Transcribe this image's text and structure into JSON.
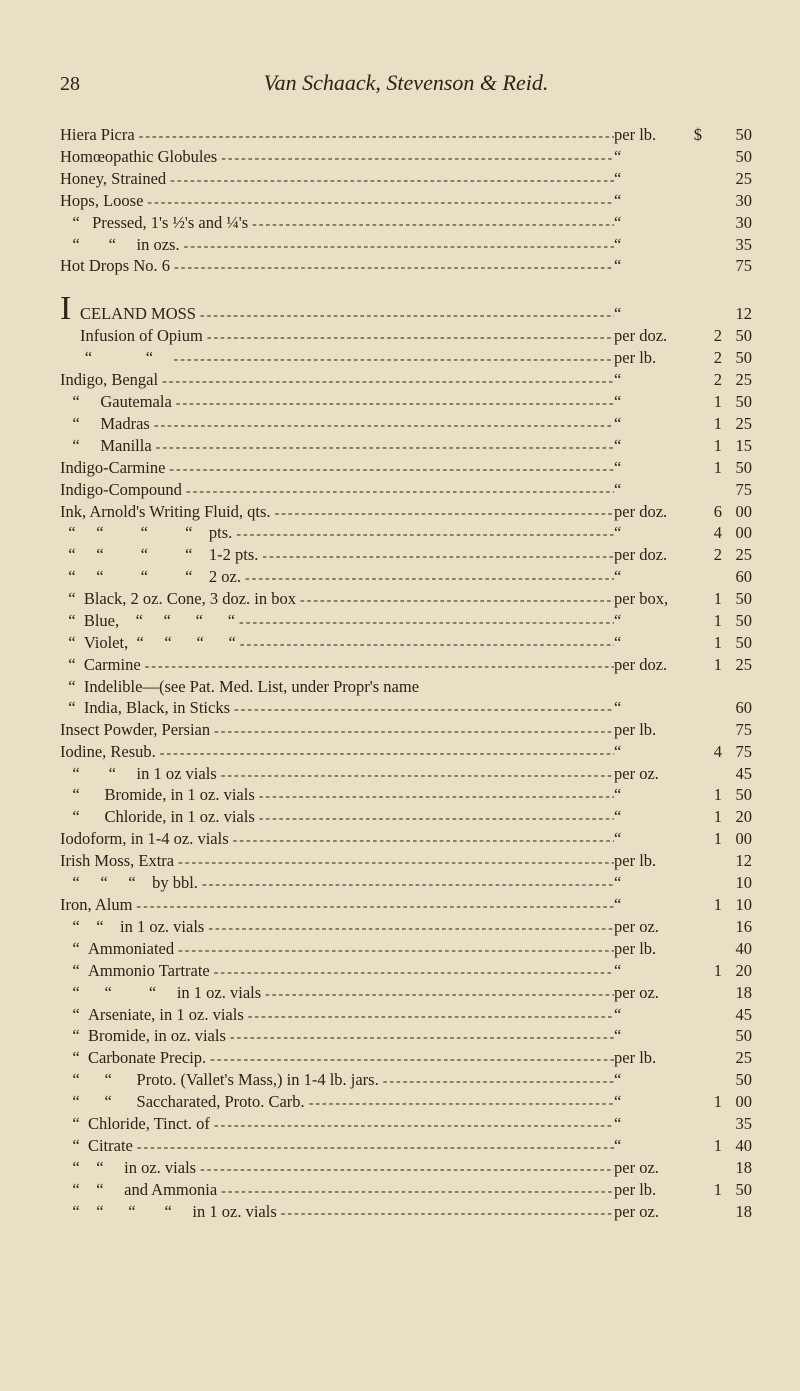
{
  "page_number": "28",
  "running_title": "Van Schaack, Stevenson & Reid.",
  "currency_symbol": "$",
  "entries": [
    {
      "desc": "Hiera Picra",
      "unit": "per lb.",
      "dol": "$",
      "whole": "",
      "cents": "50"
    },
    {
      "desc": "Homœopathic Globules",
      "unit": "“",
      "whole": "",
      "cents": "50"
    },
    {
      "desc": "Honey, Strained",
      "unit": "“",
      "whole": "",
      "cents": "25"
    },
    {
      "desc": "Hops, Loose",
      "unit": "“",
      "whole": "",
      "cents": "30"
    },
    {
      "desc": "   “   Pressed, 1's ½'s and ¼'s",
      "unit": "“",
      "whole": "",
      "cents": "30"
    },
    {
      "desc": "   “       “     in ozs.",
      "unit": "“",
      "whole": "",
      "cents": "35"
    },
    {
      "desc": "Hot Drops No. 6",
      "unit": "“",
      "whole": "",
      "cents": "75"
    },
    {
      "gap": true
    },
    {
      "drop": "I",
      "desc": "CELAND MOSS",
      "unit": "“",
      "whole": "",
      "cents": "12"
    },
    {
      "dropcont": true,
      "desc": "Infusion of Opium",
      "unit": "per doz.",
      "whole": "2",
      "cents": "50"
    },
    {
      "desc": "      “             “    ",
      "unit": "per lb.",
      "whole": "2",
      "cents": "50"
    },
    {
      "desc": "Indigo, Bengal",
      "unit": "“",
      "whole": "2",
      "cents": "25"
    },
    {
      "desc": "   “     Gautemala",
      "unit": "“",
      "whole": "1",
      "cents": "50"
    },
    {
      "desc": "   “     Madras",
      "unit": "“",
      "whole": "1",
      "cents": "25"
    },
    {
      "desc": "   “     Manilla",
      "unit": "“",
      "whole": "1",
      "cents": "15"
    },
    {
      "desc": "Indigo-Carmine",
      "unit": "“",
      "whole": "1",
      "cents": "50"
    },
    {
      "desc": "Indigo-Compound",
      "unit": "“",
      "whole": "",
      "cents": "75"
    },
    {
      "desc": "Ink, Arnold's Writing Fluid, qts.",
      "unit": "per doz.",
      "whole": "6",
      "cents": "00"
    },
    {
      "desc": "  “     “         “         “    pts.",
      "unit": "“",
      "whole": "4",
      "cents": "00"
    },
    {
      "desc": "  “     “         “         “    1-2 pts.",
      "unit": "per doz.",
      "whole": "2",
      "cents": "25"
    },
    {
      "desc": "  “     “         “         “    2 oz.",
      "unit": "“",
      "whole": "",
      "cents": "60"
    },
    {
      "desc": "  “  Black, 2 oz. Cone, 3 doz. in box",
      "unit": "per box,",
      "whole": "1",
      "cents": "50"
    },
    {
      "desc": "  “  Blue,    “     “      “      “",
      "unit": "“",
      "whole": "1",
      "cents": "50"
    },
    {
      "desc": "  “  Violet,  “     “      “      “",
      "unit": "“",
      "whole": "1",
      "cents": "50"
    },
    {
      "desc": "  “  Carmine",
      "unit": "per doz.",
      "whole": "1",
      "cents": "25"
    },
    {
      "desc": "  “  Indelible—(see Pat. Med. List, under Propr's name",
      "noleader": true,
      "unit": "",
      "whole": "",
      "cents": ""
    },
    {
      "desc": "  “  India, Black, in Sticks",
      "unit": "“",
      "whole": "",
      "cents": "60"
    },
    {
      "desc": "Insect Powder, Persian",
      "unit": "per lb.",
      "whole": "",
      "cents": "75"
    },
    {
      "desc": "Iodine, Resub.",
      "unit": "“",
      "whole": "4",
      "cents": "75"
    },
    {
      "desc": "   “       “     in 1 oz vials",
      "unit": "per oz.",
      "whole": "",
      "cents": "45"
    },
    {
      "desc": "   “      Bromide, in 1 oz. vials",
      "unit": "“",
      "whole": "1",
      "cents": "50"
    },
    {
      "desc": "   “      Chloride, in 1 oz. vials",
      "unit": "“",
      "whole": "1",
      "cents": "20"
    },
    {
      "desc": "Iodoform, in 1-4 oz. vials",
      "unit": "“",
      "whole": "1",
      "cents": "00"
    },
    {
      "desc": "Irish Moss, Extra",
      "unit": "per lb.",
      "whole": "",
      "cents": "12"
    },
    {
      "desc": "   “     “     “    by bbl.",
      "unit": "“",
      "whole": "",
      "cents": "10"
    },
    {
      "desc": "Iron, Alum",
      "unit": "“",
      "whole": "1",
      "cents": "10"
    },
    {
      "desc": "   “    “    in 1 oz. vials",
      "unit": "per oz.",
      "whole": "",
      "cents": "16"
    },
    {
      "desc": "   “  Ammoniated",
      "unit": "per lb.",
      "whole": "",
      "cents": "40"
    },
    {
      "desc": "   “  Ammonio Tartrate",
      "unit": "“",
      "whole": "1",
      "cents": "20"
    },
    {
      "desc": "   “      “         “     in 1 oz. vials",
      "unit": "per oz.",
      "whole": "",
      "cents": "18"
    },
    {
      "desc": "   “  Arseniate, in 1 oz. vials",
      "unit": "“",
      "whole": "",
      "cents": "45"
    },
    {
      "desc": "   “  Bromide, in oz. vials",
      "unit": "“",
      "whole": "",
      "cents": "50"
    },
    {
      "desc": "   “  Carbonate Precip.",
      "unit": "per lb.",
      "whole": "",
      "cents": "25"
    },
    {
      "desc": "   “      “      Proto. (Vallet's Mass,) in 1-4 lb. jars.",
      "unit": "“",
      "whole": "",
      "cents": "50"
    },
    {
      "desc": "   “      “      Saccharated, Proto. Carb.",
      "unit": "“",
      "whole": "1",
      "cents": "00"
    },
    {
      "desc": "   “  Chloride, Tinct. of",
      "unit": "“",
      "whole": "",
      "cents": "35"
    },
    {
      "desc": "   “  Citrate",
      "unit": "“",
      "whole": "1",
      "cents": "40"
    },
    {
      "desc": "   “    “     in oz. vials",
      "unit": "per oz.",
      "whole": "",
      "cents": "18"
    },
    {
      "desc": "   “    “     and Ammonia",
      "unit": "per lb.",
      "whole": "1",
      "cents": "50"
    },
    {
      "desc": "   “    “      “       “     in 1 oz. vials",
      "unit": "per oz.",
      "whole": "",
      "cents": "18"
    }
  ]
}
